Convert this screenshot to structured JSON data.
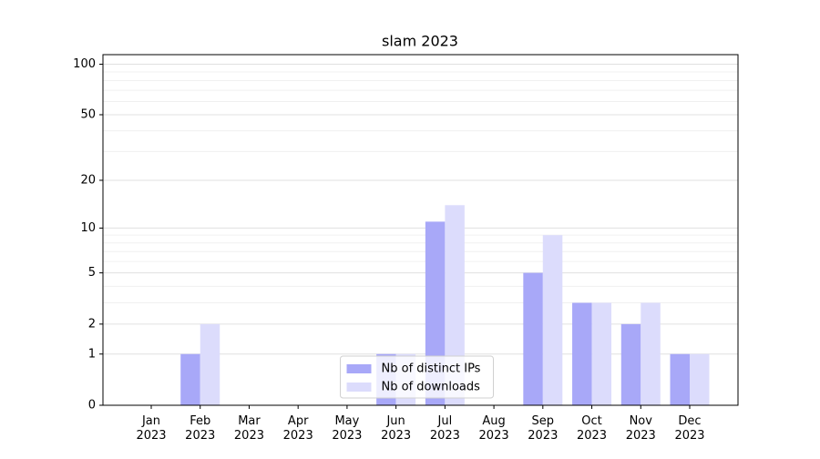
{
  "chart_data": {
    "type": "bar",
    "title": "slam 2023",
    "categories": [
      "Jan\n2023",
      "Feb\n2023",
      "Mar\n2023",
      "Apr\n2023",
      "May\n2023",
      "Jun\n2023",
      "Jul\n2023",
      "Aug\n2023",
      "Sep\n2023",
      "Oct\n2023",
      "Nov\n2023",
      "Dec\n2023"
    ],
    "series": [
      {
        "name": "Nb of distinct IPs",
        "color": "#a8a8f8",
        "values": [
          0,
          1,
          0,
          0,
          0,
          1,
          11,
          0,
          5,
          3,
          2,
          1
        ]
      },
      {
        "name": "Nb of downloads",
        "color": "#dcdcfc",
        "values": [
          0,
          2,
          0,
          0,
          0,
          1,
          14,
          0,
          9,
          3,
          3,
          1
        ]
      }
    ],
    "yscale": "log1p",
    "ylim": [
      0,
      114
    ],
    "yticks": [
      0,
      1,
      2,
      5,
      10,
      20,
      50,
      100
    ],
    "yminor": [
      3,
      4,
      6,
      7,
      8,
      9,
      30,
      40,
      60,
      70,
      80,
      90
    ],
    "grid": true,
    "legend": "lower center"
  }
}
